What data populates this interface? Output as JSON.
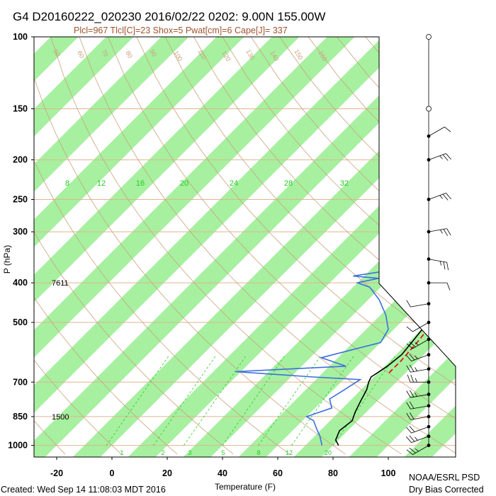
{
  "header": {
    "title": "G4 D20160222_020230 2016/02/22 0202:  9.00N 155.00W",
    "subtitle": "Plcl=967 Tlcl[C]=23 Shox=5 Pwat[cm]=6 Cape[J]= 337"
  },
  "footer": {
    "created": "Created: Wed Sep 14 11:08:03 MDT 2016",
    "credit_line1": "NOAA/ESRL PSD",
    "credit_line2": "Dry Bias Corrected"
  },
  "colors": {
    "temperature": "#000000",
    "dewpoint": "#3b6fe0",
    "parcel": "#dd0000",
    "isotherm_band": "#a6f0a0",
    "mixing_ratio": "#22cc22",
    "adiabat": "#c9a27e",
    "heights": "#000000"
  },
  "chart_data": {
    "type": "line",
    "xlabel": "Temperature (F)",
    "ylabel": "P (hPa)",
    "xlim": [
      -30,
      110
    ],
    "ylim": [
      1050,
      100
    ],
    "y_scale": "log",
    "x_ticks": [
      "-20",
      "0",
      "20",
      "40",
      "60",
      "80",
      "100"
    ],
    "y_ticks": [
      "100",
      "150",
      "200",
      "250",
      "300",
      "400",
      "500",
      "700",
      "850",
      "1000"
    ],
    "mixing_ratio_labels": [
      "8",
      "12",
      "16",
      "20",
      "24",
      "28",
      "32"
    ],
    "mixing_ratio_bottom_labels": [
      "1",
      "2",
      "3",
      "5",
      "8",
      "12",
      "20"
    ],
    "theta_labels": [
      "50",
      "60",
      "70",
      "80",
      "90",
      "100",
      "110",
      "120",
      "130",
      "140",
      "150",
      "160"
    ],
    "isotherm_labels": [
      "30",
      "20",
      "10",
      "0",
      "10",
      "20",
      "30"
    ],
    "height_labels": [
      {
        "p": 400,
        "text": "7611"
      },
      {
        "p": 850,
        "text": "1500"
      }
    ],
    "series": [
      {
        "key": "temperature",
        "points": [
          [
            30,
            170
          ],
          [
            35,
            190
          ],
          [
            40,
            210
          ],
          [
            44,
            230
          ],
          [
            48,
            250
          ],
          [
            52,
            270
          ],
          [
            55,
            290
          ],
          [
            57,
            310
          ],
          [
            56,
            330
          ],
          [
            59,
            350
          ],
          [
            62,
            370
          ],
          [
            64,
            400
          ],
          [
            66,
            430
          ],
          [
            68,
            470
          ],
          [
            70,
            510
          ],
          [
            71,
            550
          ],
          [
            72,
            600
          ],
          [
            71,
            640
          ],
          [
            69,
            680
          ],
          [
            70,
            700
          ],
          [
            72,
            730
          ],
          [
            74,
            780
          ],
          [
            76,
            830
          ],
          [
            78,
            870
          ],
          [
            77,
            920
          ],
          [
            79,
            970
          ],
          [
            82,
            1000
          ]
        ]
      },
      {
        "key": "dewpoint",
        "points": [
          [
            24,
            190
          ],
          [
            30,
            210
          ],
          [
            36,
            240
          ],
          [
            40,
            270
          ],
          [
            46,
            300
          ],
          [
            42,
            330
          ],
          [
            46,
            350
          ],
          [
            40,
            370
          ],
          [
            26,
            385
          ],
          [
            36,
            390
          ],
          [
            30,
            400
          ],
          [
            36,
            410
          ],
          [
            44,
            440
          ],
          [
            52,
            480
          ],
          [
            58,
            520
          ],
          [
            60,
            560
          ],
          [
            44,
            610
          ],
          [
            56,
            640
          ],
          [
            18,
            660
          ],
          [
            48,
            680
          ],
          [
            66,
            690
          ],
          [
            64,
            730
          ],
          [
            62,
            770
          ],
          [
            66,
            810
          ],
          [
            60,
            850
          ],
          [
            64,
            870
          ],
          [
            68,
            910
          ],
          [
            72,
            950
          ],
          [
            76,
            1000
          ]
        ]
      },
      {
        "key": "parcel",
        "points": [
          [
            55,
            290
          ],
          [
            60,
            330
          ],
          [
            64,
            370
          ],
          [
            68,
            420
          ],
          [
            71,
            480
          ],
          [
            73,
            550
          ],
          [
            74,
            620
          ],
          [
            74,
            667
          ]
        ]
      }
    ],
    "wind_barbs": [
      {
        "p": 1000,
        "speed_kt": 15,
        "dir": 60
      },
      {
        "p": 950,
        "speed_kt": 15,
        "dir": 70
      },
      {
        "p": 900,
        "speed_kt": 20,
        "dir": 70
      },
      {
        "p": 850,
        "speed_kt": 20,
        "dir": 80
      },
      {
        "p": 800,
        "speed_kt": 20,
        "dir": 80
      },
      {
        "p": 750,
        "speed_kt": 15,
        "dir": 80
      },
      {
        "p": 700,
        "speed_kt": 15,
        "dir": 90
      },
      {
        "p": 650,
        "speed_kt": 15,
        "dir": 80
      },
      {
        "p": 600,
        "speed_kt": 15,
        "dir": 70
      },
      {
        "p": 550,
        "speed_kt": 15,
        "dir": 60
      },
      {
        "p": 500,
        "speed_kt": 10,
        "dir": 60
      },
      {
        "p": 450,
        "speed_kt": 10,
        "dir": 80
      },
      {
        "p": 400,
        "speed_kt": 10,
        "dir": 270
      },
      {
        "p": 350,
        "speed_kt": 15,
        "dir": 280
      },
      {
        "p": 300,
        "speed_kt": 15,
        "dir": 260
      },
      {
        "p": 250,
        "speed_kt": 15,
        "dir": 250
      },
      {
        "p": 200,
        "speed_kt": 15,
        "dir": 250
      },
      {
        "p": 175,
        "speed_kt": 10,
        "dir": 240
      },
      {
        "p": 150,
        "speed_kt": 0,
        "dir": 0
      },
      {
        "p": 100,
        "speed_kt": 0,
        "dir": 0
      }
    ]
  }
}
